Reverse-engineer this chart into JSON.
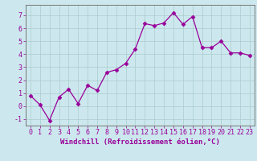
{
  "x": [
    0,
    1,
    2,
    3,
    4,
    5,
    6,
    7,
    8,
    9,
    10,
    11,
    12,
    13,
    14,
    15,
    16,
    17,
    18,
    19,
    20,
    21,
    22,
    23
  ],
  "y": [
    0.8,
    0.1,
    -1.1,
    0.7,
    1.3,
    0.2,
    1.6,
    1.2,
    2.6,
    2.8,
    3.3,
    4.4,
    6.35,
    6.2,
    6.4,
    7.2,
    6.3,
    6.9,
    4.5,
    4.5,
    5.0,
    4.1,
    4.1,
    3.9
  ],
  "line_color": "#990099",
  "marker": "D",
  "marker_size": 2.5,
  "bg_color": "#cce8ee",
  "grid_color": "#aacccc",
  "xlabel": "Windchill (Refroidissement éolien,°C)",
  "ylabel": "",
  "ylim": [
    -1.5,
    7.8
  ],
  "xlim": [
    -0.5,
    23.5
  ],
  "yticks": [
    -1,
    0,
    1,
    2,
    3,
    4,
    5,
    6,
    7
  ],
  "xticks": [
    0,
    1,
    2,
    3,
    4,
    5,
    6,
    7,
    8,
    9,
    10,
    11,
    12,
    13,
    14,
    15,
    16,
    17,
    18,
    19,
    20,
    21,
    22,
    23
  ],
  "tick_color": "#990099",
  "label_color": "#990099",
  "label_fontsize": 6.5,
  "tick_fontsize": 6.0,
  "spine_color": "#777777"
}
